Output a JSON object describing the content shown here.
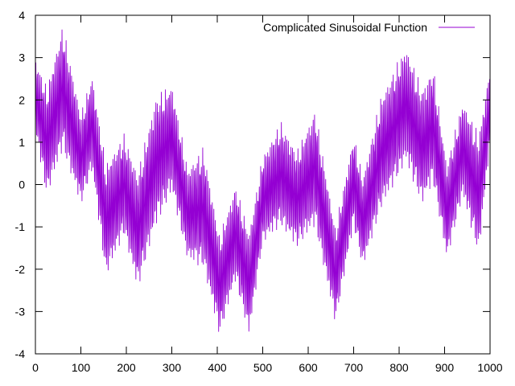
{
  "chart_data": {
    "type": "line",
    "title": "",
    "xlabel": "",
    "ylabel": "",
    "xlim": [
      0,
      1000
    ],
    "ylim": [
      -4,
      4
    ],
    "grid": false,
    "legend_position": "top-right",
    "x_ticks": [
      0,
      100,
      200,
      300,
      400,
      500,
      600,
      700,
      800,
      900,
      1000
    ],
    "y_ticks": [
      -4,
      -3,
      -2,
      -1,
      0,
      1,
      2,
      3,
      4
    ],
    "series": [
      {
        "name": "Complicated Sinusoidal Function",
        "color": "#9400d3",
        "x_start": 0,
        "x_end": 1000,
        "envelope": {
          "x": [
            0,
            25,
            60,
            100,
            125,
            155,
            195,
            225,
            265,
            300,
            335,
            370,
            405,
            440,
            470,
            500,
            540,
            575,
            615,
            660,
            700,
            720,
            760,
            815,
            850,
            875,
            905,
            940,
            975,
            1000
          ],
          "max": [
            3.0,
            2.3,
            3.8,
            1.7,
            2.6,
            0.5,
            1.2,
            0.3,
            2.1,
            2.4,
            0.4,
            0.9,
            -1.2,
            0.0,
            -1.1,
            0.7,
            1.5,
            0.8,
            1.8,
            -1.0,
            1.2,
            0.2,
            2.1,
            3.3,
            2.3,
            2.8,
            0.5,
            2.0,
            1.2,
            2.8
          ],
          "min": [
            1.2,
            -0.3,
            0.8,
            -0.5,
            0.3,
            -2.2,
            -1.2,
            -2.5,
            -1.0,
            -0.2,
            -1.8,
            -2.0,
            -3.6,
            -2.3,
            -3.6,
            -1.4,
            -1.0,
            -1.5,
            -1.0,
            -3.3,
            -1.0,
            -2.0,
            -0.6,
            0.5,
            -0.5,
            0.0,
            -1.8,
            -0.3,
            -1.7,
            0.9
          ]
        }
      }
    ]
  }
}
